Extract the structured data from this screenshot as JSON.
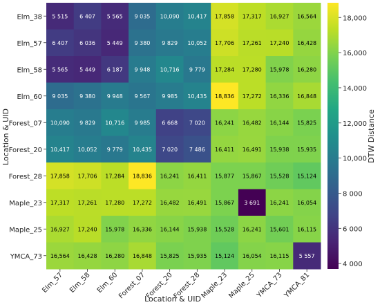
{
  "chart_data": {
    "type": "heatmap",
    "x_categories": [
      "Elm_57",
      "Elm_58",
      "Elm_60",
      "Forest_07",
      "Forest_20",
      "Forest_28",
      "Maple_23",
      "Maple_25",
      "YMCA_73",
      "YMCA_81"
    ],
    "y_categories": [
      "Elm_38",
      "Elm_57",
      "Elm_58",
      "Elm_60",
      "Forest_07",
      "Forest_20",
      "Forest_28",
      "Maple_23",
      "Maple_25",
      "YMCA_73"
    ],
    "values": [
      [
        5515,
        6407,
        5565,
        9035,
        10090,
        10417,
        17858,
        17317,
        16927,
        16564
      ],
      [
        6407,
        6036,
        5449,
        9380,
        9829,
        10052,
        17706,
        17261,
        17240,
        16428
      ],
      [
        5565,
        5449,
        6187,
        9948,
        10716,
        9779,
        17284,
        17280,
        15978,
        16280
      ],
      [
        9035,
        9380,
        9948,
        9567,
        9985,
        10435,
        18836,
        17272,
        16336,
        16848
      ],
      [
        10090,
        9829,
        10716,
        9985,
        6668,
        7020,
        16241,
        16482,
        16144,
        15825
      ],
      [
        10417,
        10052,
        9779,
        10435,
        7020,
        7486,
        16411,
        16491,
        15938,
        15935
      ],
      [
        17858,
        17706,
        17284,
        18836,
        16241,
        16411,
        15877,
        15867,
        15528,
        15124
      ],
      [
        17317,
        17261,
        17280,
        17272,
        16482,
        16491,
        15867,
        3691,
        16241,
        16054
      ],
      [
        16927,
        17240,
        15978,
        16336,
        16144,
        15938,
        15528,
        16241,
        15601,
        16115
      ],
      [
        16564,
        16428,
        16280,
        16848,
        15825,
        15935,
        15124,
        16054,
        16115,
        5557
      ]
    ],
    "cell_labels": [
      [
        "5 515",
        "6 407",
        "5 565",
        "9 035",
        "10,090",
        "10,417",
        "17,858",
        "17,317",
        "16,927",
        "16,564"
      ],
      [
        "6 407",
        "6 036",
        "5 449",
        "9 380",
        "9 829",
        "10,052",
        "17,706",
        "17,261",
        "17,240",
        "16,428"
      ],
      [
        "5 565",
        "5 449",
        "6 187",
        "9 948",
        "10,716",
        "9 779",
        "17,284",
        "17,280",
        "15,978",
        "16,280"
      ],
      [
        "9 035",
        "9 380",
        "9 948",
        "9 567",
        "9 985",
        "10,435",
        "18,836",
        "17,272",
        "16,336",
        "16,848"
      ],
      [
        "10,090",
        "9 829",
        "10,716",
        "9 985",
        "6 668",
        "7 020",
        "16,241",
        "16,482",
        "16,144",
        "15,825"
      ],
      [
        "10,417",
        "10,052",
        "9 779",
        "10,435",
        "7 020",
        "7 486",
        "16,411",
        "16,491",
        "15,938",
        "15,935"
      ],
      [
        "17,858",
        "17,706",
        "17,284",
        "18,836",
        "16,241",
        "16,411",
        "15,877",
        "15,867",
        "15,528",
        "15,124"
      ],
      [
        "17,317",
        "17,261",
        "17,280",
        "17,272",
        "16,482",
        "16,491",
        "15,867",
        "3 691",
        "16,241",
        "16,054"
      ],
      [
        "16,927",
        "17,240",
        "15,978",
        "16,336",
        "16,144",
        "15,938",
        "15,528",
        "16,241",
        "15,601",
        "16,115"
      ],
      [
        "16,564",
        "16,428",
        "16,280",
        "16,848",
        "15,825",
        "15,935",
        "15,124",
        "16,054",
        "16,115",
        "5 557"
      ]
    ],
    "xlabel": "Location & UID",
    "ylabel": "Location & UID",
    "colorbar_label": "DTW Distance",
    "colorbar_ticks": [
      {
        "value": 4000,
        "label": "4 000"
      },
      {
        "value": 6000,
        "label": "6 000"
      },
      {
        "value": 8000,
        "label": "8 000"
      },
      {
        "value": 10000,
        "label": "10,000"
      },
      {
        "value": 12000,
        "label": "12,000"
      },
      {
        "value": 14000,
        "label": "14,000"
      },
      {
        "value": 16000,
        "label": "16,000"
      },
      {
        "value": 18000,
        "label": "18,000"
      }
    ],
    "color_range": [
      3691,
      18836
    ],
    "colormap": "viridis",
    "title": ""
  }
}
